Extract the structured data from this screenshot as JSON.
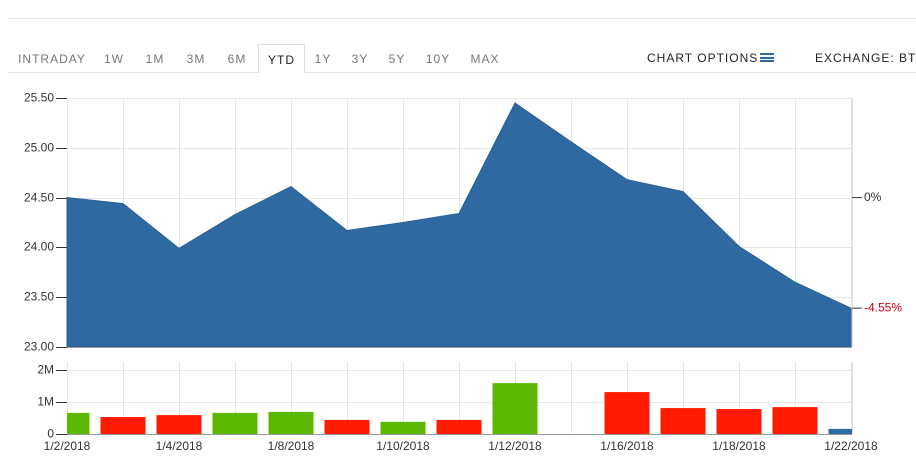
{
  "toolbar": {
    "tabs": [
      "INTRADAY",
      "1W",
      "1M",
      "3M",
      "6M",
      "YTD",
      "1Y",
      "3Y",
      "5Y",
      "10Y",
      "MAX"
    ],
    "active": 5,
    "options": "CHART OPTIONS",
    "exchange": "EXCHANGE: BTT"
  },
  "chart_data": [
    {
      "type": "area",
      "color": "#2e6aa1",
      "categories": [
        "1/2/2018",
        null,
        "1/4/2018",
        null,
        "1/8/2018",
        null,
        "1/10/2018",
        null,
        "1/12/2018",
        null,
        "1/16/2018",
        null,
        "1/18/2018",
        null,
        "1/22/2018"
      ],
      "values": [
        24.5,
        24.44,
        23.99,
        24.33,
        24.61,
        24.17,
        24.25,
        24.34,
        25.45,
        25.06,
        24.68,
        24.56,
        24.01,
        23.65,
        23.39
      ],
      "ylim": [
        23,
        25.5
      ],
      "yticks": [
        {
          "value": 23,
          "label": "23.00"
        },
        {
          "value": 23.5,
          "label": "23.50"
        },
        {
          "value": 24,
          "label": "24.00"
        },
        {
          "value": 24.5,
          "label": "24.50"
        },
        {
          "value": 25,
          "label": "25.00"
        },
        {
          "value": 25.5,
          "label": "25.50"
        }
      ],
      "grid": true,
      "annotations": [
        {
          "text": "0%",
          "color": "#333333"
        },
        {
          "text": "-4.55%",
          "color": "#d0021b"
        }
      ]
    },
    {
      "type": "bar",
      "values": [
        660000,
        530000,
        590000,
        660000,
        690000,
        440000,
        380000,
        440000,
        1590000,
        null,
        1310000,
        810000,
        780000,
        840000,
        160000
      ],
      "colors": [
        "#5cb800",
        "#ff1a00",
        "#ff1a00",
        "#5cb800",
        "#5cb800",
        "#ff1a00",
        "#5cb800",
        "#ff1a00",
        "#5cb800",
        null,
        "#ff1a00",
        "#ff1a00",
        "#ff1a00",
        "#ff1a00",
        "#2e6ca4"
      ],
      "ylim": [
        0,
        2250000
      ],
      "yticks": [
        0,
        {
          "value": 1000000,
          "label": "1M"
        },
        {
          "value": 2000000,
          "label": "2M"
        }
      ],
      "grid": true
    }
  ]
}
